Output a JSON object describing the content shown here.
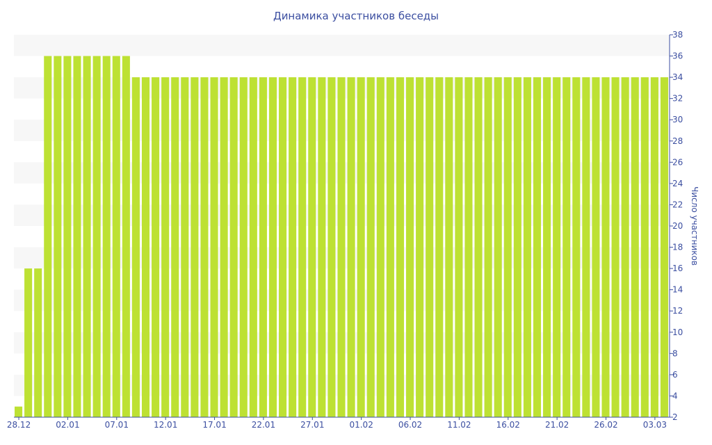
{
  "chart_data": {
    "type": "bar",
    "title": "Динамика участников беседы",
    "ylabel": "Число участников",
    "xlabel": "",
    "ylim": [
      2,
      38
    ],
    "ytick_step": 2,
    "grid": "alternating horizontal bands",
    "start_day": "28.12",
    "x_tick_labels": [
      "28.12",
      "02.01",
      "07.01",
      "12.01",
      "17.01",
      "22.01",
      "27.01",
      "01.02",
      "06.02",
      "11.02",
      "16.02",
      "21.02",
      "26.02",
      "03.03"
    ],
    "values": [
      3,
      16,
      16,
      36,
      36,
      36,
      36,
      36,
      36,
      36,
      36,
      36,
      34,
      34,
      34,
      34,
      34,
      34,
      34,
      34,
      34,
      34,
      34,
      34,
      34,
      34,
      34,
      34,
      34,
      34,
      34,
      34,
      34,
      34,
      34,
      34,
      34,
      34,
      34,
      34,
      34,
      34,
      34,
      34,
      34,
      34,
      34,
      34,
      34,
      34,
      34,
      34,
      34,
      34,
      34,
      34,
      34,
      34,
      34,
      34,
      34,
      34,
      34,
      34,
      34,
      34,
      34
    ],
    "colors": {
      "bar": "#bde133",
      "band": "#f7f7f7",
      "axis": "#3b4ea0",
      "text": "#3b4ea0"
    }
  }
}
